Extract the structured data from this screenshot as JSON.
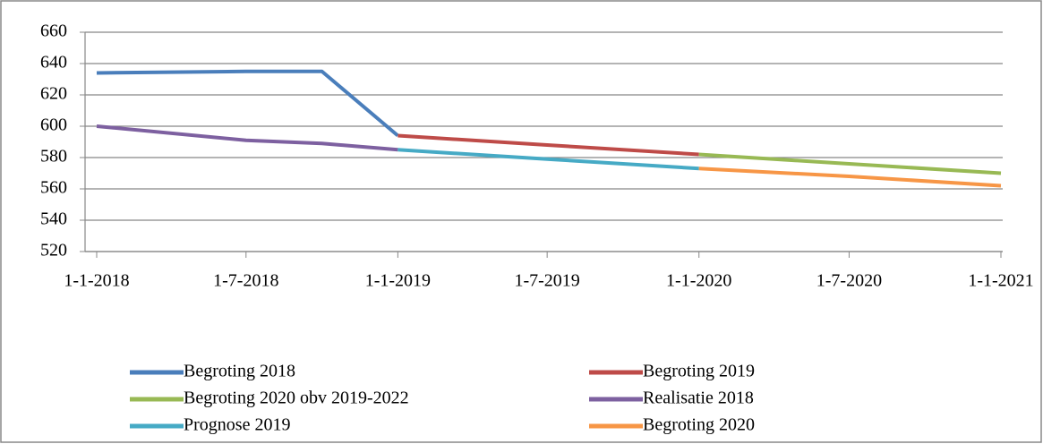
{
  "chart_data": {
    "type": "line",
    "x": [
      "1-1-2018",
      "1-7-2018",
      "1-10-2018",
      "1-1-2019",
      "1-7-2019",
      "1-1-2020",
      "1-7-2020",
      "1-1-2021"
    ],
    "series": [
      {
        "name": "Begroting 2018",
        "color": "#4a7ebb",
        "values": [
          634,
          635,
          635,
          594,
          null,
          null,
          null,
          null
        ]
      },
      {
        "name": "Begroting 2019",
        "color": "#be4b48",
        "values": [
          null,
          null,
          null,
          594,
          588,
          582,
          null,
          null
        ]
      },
      {
        "name": "Begroting 2020 obv 2019-2022",
        "color": "#98b954",
        "values": [
          null,
          null,
          null,
          null,
          null,
          582,
          576,
          570
        ]
      },
      {
        "name": "Realisatie 2018",
        "color": "#7d60a0",
        "values": [
          600,
          591,
          589,
          585,
          null,
          null,
          null,
          null
        ]
      },
      {
        "name": "Prognose 2019",
        "color": "#46aac5",
        "values": [
          null,
          null,
          null,
          585,
          579,
          573,
          null,
          null
        ]
      },
      {
        "name": "Begroting 2020",
        "color": "#f79646",
        "values": [
          null,
          null,
          null,
          null,
          null,
          573,
          568,
          562
        ]
      }
    ],
    "ylim": [
      520,
      660
    ],
    "yticks": [
      520,
      540,
      560,
      580,
      600,
      620,
      640,
      660
    ],
    "xticks": [
      "1-1-2018",
      "1-7-2018",
      "1-1-2019",
      "1-7-2019",
      "1-1-2020",
      "1-7-2020",
      "1-1-2021"
    ],
    "grid": true,
    "legend": "bottom"
  }
}
